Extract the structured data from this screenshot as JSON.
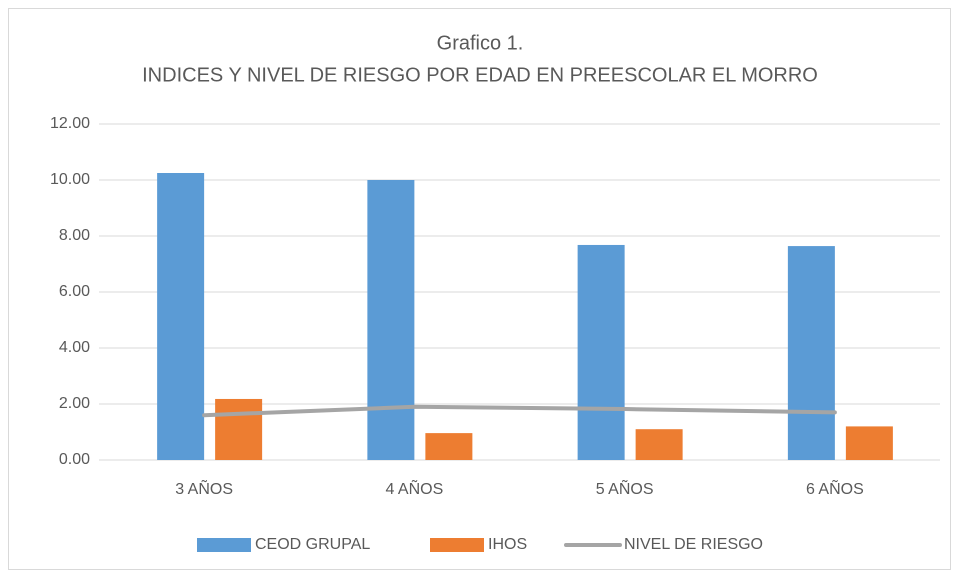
{
  "chart_data": {
    "type": "bar_line",
    "title": "Grafico 1.",
    "subtitle": "INDICES Y NIVEL DE RIESGO POR EDAD EN PREESCOLAR EL MORRO",
    "categories": [
      "3 AÑOS",
      "4 AÑOS",
      "5 AÑOS",
      "6 AÑOS"
    ],
    "series": [
      {
        "name": "CEOD GRUPAL",
        "type": "bar",
        "color": "#5b9bd5",
        "values": [
          10.25,
          10.0,
          7.68,
          7.64
        ]
      },
      {
        "name": "IHOS",
        "type": "bar",
        "color": "#ed7d31",
        "values": [
          2.18,
          0.96,
          1.1,
          1.2
        ]
      },
      {
        "name": "NIVEL DE RIESGO",
        "type": "line",
        "color": "#a5a5a5",
        "values": [
          1.6,
          1.9,
          1.82,
          1.7
        ]
      }
    ],
    "ylim": [
      0,
      12
    ],
    "yticks": [
      {
        "value": 0,
        "label": "0.00"
      },
      {
        "value": 2,
        "label": "2.00"
      },
      {
        "value": 4,
        "label": "4.00"
      },
      {
        "value": 6,
        "label": "6.00"
      },
      {
        "value": 8,
        "label": "8.00"
      },
      {
        "value": 10,
        "label": "10.00"
      },
      {
        "value": 12,
        "label": "12.00"
      }
    ],
    "grid": true,
    "legend": "bottom"
  }
}
